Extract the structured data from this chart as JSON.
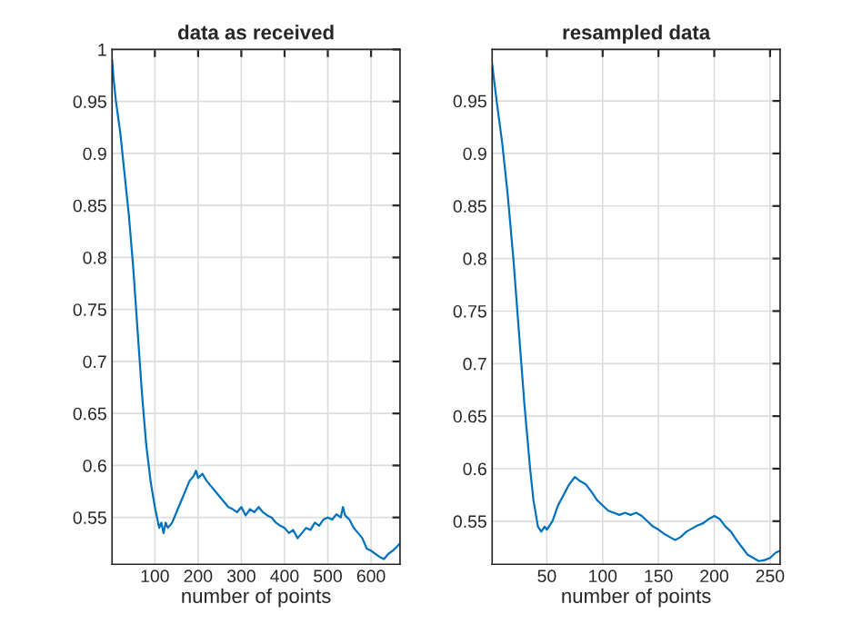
{
  "chart_data": [
    {
      "type": "line",
      "title": "data as received",
      "xlabel": "number of points",
      "grid": true,
      "xlim": [
        1,
        667
      ],
      "ylim": [
        0.505,
        1
      ],
      "xticks": [
        100,
        200,
        300,
        400,
        500,
        600
      ],
      "yticks": [
        {
          "value": 0.55,
          "label": "0.55"
        },
        {
          "value": 0.6,
          "label": "0.6"
        },
        {
          "value": 0.65,
          "label": "0.65"
        },
        {
          "value": 0.7,
          "label": "0.7"
        },
        {
          "value": 0.75,
          "label": "0.75"
        },
        {
          "value": 0.8,
          "label": "0.8"
        },
        {
          "value": 0.85,
          "label": "0.85"
        },
        {
          "value": 0.9,
          "label": "0.9"
        },
        {
          "value": 0.95,
          "label": "0.95"
        },
        {
          "value": 1,
          "label": "1"
        }
      ],
      "series": [
        {
          "color": "#0072bd",
          "x": [
            1,
            5,
            10,
            20,
            30,
            40,
            50,
            60,
            70,
            80,
            90,
            100,
            105,
            110,
            115,
            120,
            125,
            130,
            140,
            150,
            160,
            170,
            180,
            190,
            195,
            200,
            210,
            220,
            230,
            240,
            250,
            260,
            270,
            280,
            290,
            300,
            310,
            320,
            330,
            340,
            350,
            360,
            370,
            380,
            390,
            400,
            410,
            420,
            430,
            440,
            450,
            460,
            470,
            480,
            490,
            500,
            510,
            520,
            530,
            535,
            540,
            550,
            560,
            570,
            580,
            590,
            600,
            610,
            620,
            630,
            640,
            650,
            660,
            667
          ],
          "values": [
            0.99,
            0.97,
            0.95,
            0.92,
            0.88,
            0.84,
            0.79,
            0.73,
            0.67,
            0.62,
            0.585,
            0.56,
            0.55,
            0.54,
            0.545,
            0.535,
            0.545,
            0.54,
            0.545,
            0.555,
            0.565,
            0.575,
            0.585,
            0.59,
            0.595,
            0.588,
            0.592,
            0.585,
            0.58,
            0.575,
            0.57,
            0.565,
            0.56,
            0.558,
            0.555,
            0.56,
            0.552,
            0.558,
            0.555,
            0.56,
            0.555,
            0.552,
            0.55,
            0.545,
            0.542,
            0.54,
            0.535,
            0.538,
            0.53,
            0.535,
            0.54,
            0.538,
            0.545,
            0.542,
            0.548,
            0.55,
            0.548,
            0.553,
            0.55,
            0.56,
            0.552,
            0.548,
            0.54,
            0.535,
            0.53,
            0.52,
            0.518,
            0.515,
            0.512,
            0.51,
            0.515,
            0.518,
            0.522,
            0.525
          ]
        }
      ]
    },
    {
      "type": "line",
      "title": "resampled data",
      "xlabel": "number of points",
      "grid": true,
      "xlim": [
        1,
        259
      ],
      "ylim": [
        0.509,
        0.999
      ],
      "xticks": [
        50,
        100,
        150,
        200,
        250
      ],
      "yticks": [
        {
          "value": 0.55,
          "label": "0.55"
        },
        {
          "value": 0.6,
          "label": "0.6"
        },
        {
          "value": 0.65,
          "label": "0.65"
        },
        {
          "value": 0.7,
          "label": "0.7"
        },
        {
          "value": 0.75,
          "label": "0.75"
        },
        {
          "value": 0.8,
          "label": "0.8"
        },
        {
          "value": 0.85,
          "label": "0.85"
        },
        {
          "value": 0.9,
          "label": "0.9"
        },
        {
          "value": 0.95,
          "label": "0.95"
        }
      ],
      "series": [
        {
          "color": "#0072bd",
          "x": [
            1,
            5,
            10,
            15,
            20,
            25,
            30,
            35,
            38,
            42,
            45,
            48,
            50,
            55,
            60,
            65,
            70,
            75,
            80,
            85,
            90,
            95,
            100,
            105,
            110,
            115,
            120,
            125,
            130,
            135,
            140,
            145,
            150,
            155,
            160,
            165,
            170,
            175,
            180,
            185,
            190,
            195,
            200,
            205,
            210,
            215,
            220,
            225,
            230,
            235,
            240,
            245,
            250,
            255,
            259
          ],
          "values": [
            0.985,
            0.95,
            0.91,
            0.86,
            0.8,
            0.73,
            0.66,
            0.6,
            0.57,
            0.545,
            0.54,
            0.545,
            0.542,
            0.55,
            0.565,
            0.575,
            0.585,
            0.592,
            0.588,
            0.585,
            0.578,
            0.57,
            0.565,
            0.56,
            0.558,
            0.556,
            0.558,
            0.556,
            0.558,
            0.555,
            0.55,
            0.545,
            0.542,
            0.538,
            0.535,
            0.532,
            0.535,
            0.54,
            0.543,
            0.546,
            0.548,
            0.552,
            0.555,
            0.552,
            0.545,
            0.54,
            0.532,
            0.525,
            0.518,
            0.515,
            0.512,
            0.513,
            0.515,
            0.52,
            0.522
          ]
        }
      ]
    }
  ]
}
